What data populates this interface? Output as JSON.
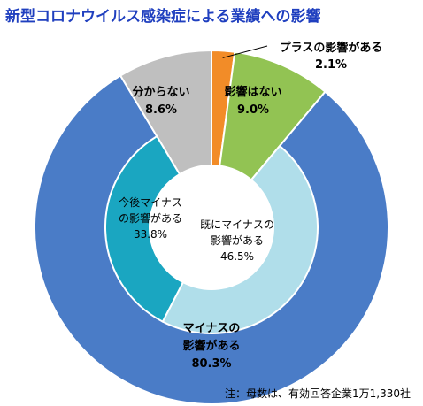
{
  "title": "新型コロナウイルス感染症による業績への影響",
  "note": "注：母数は、有効回答企業1万1,330社",
  "chart_data": {
    "type": "pie",
    "outer": {
      "slices": [
        {
          "label_lines": [
            "プラスの影響がある",
            "2.1%"
          ],
          "value": 2.1,
          "color": "#f28c28"
        },
        {
          "label_lines": [
            "影響はない",
            "9.0%"
          ],
          "value": 9.0,
          "color": "#92c353"
        },
        {
          "label_lines": [
            "マイナスの",
            "影響がある",
            "80.3%"
          ],
          "value": 80.3,
          "color": "#4a7cc7"
        },
        {
          "label_lines": [
            "分からない",
            "8.6%"
          ],
          "value": 8.6,
          "color": "#bfbfbf"
        }
      ]
    },
    "inner": {
      "slices": [
        {
          "label_lines": [
            "既にマイナスの",
            "影響がある",
            "46.5%"
          ],
          "value": 46.5,
          "color": "#b0deea"
        },
        {
          "label_lines": [
            "今後マイナス",
            "の影響がある",
            "33.8%"
          ],
          "value": 33.8,
          "color": "#1aa6c1"
        }
      ]
    }
  }
}
